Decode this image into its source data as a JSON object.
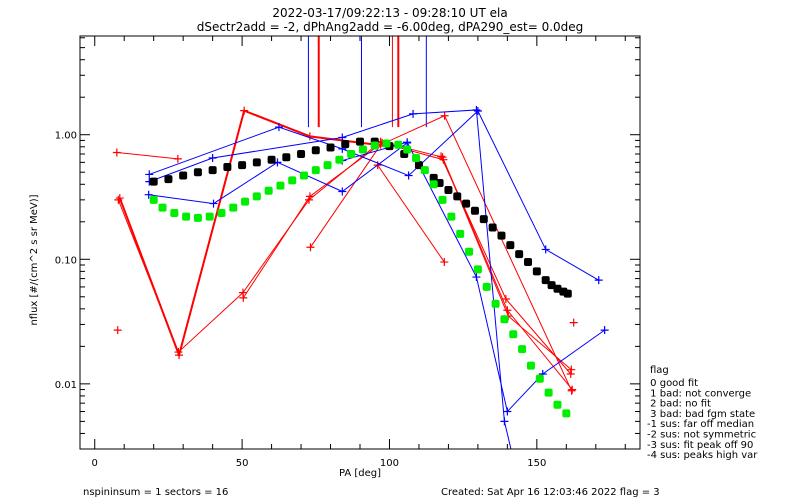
{
  "chart_data": {
    "type": "line",
    "title": "2022-03-17/09:22:13 - 09:28:10 UT ela",
    "subtitle": "dSectr2add = -2, dPhAng2add = -6.00deg, dPA290_est=    0.0deg",
    "xlabel": "PA [deg]",
    "ylabel": "nflux [#/(cm^2 s sr MeV)]",
    "xlim": [
      -5,
      185
    ],
    "ylim": [
      0.003,
      6.2
    ],
    "yscale": "log",
    "xticks": [
      0,
      50,
      100,
      150
    ],
    "xtick_labels": [
      "0",
      "50",
      "100",
      "150"
    ],
    "yticks": [
      0.01,
      0.1,
      1.0
    ],
    "ytick_labels": [
      "0.01",
      "0.10",
      "1.00"
    ],
    "grid": false,
    "colors": {
      "red": "#ff0000",
      "blue": "#0000ff",
      "black": "#000000",
      "green": "#00ee00"
    },
    "series": [
      {
        "name": "red-a",
        "color": "red",
        "width": 1,
        "x": [
          7.5,
          28.2
        ],
        "y": [
          0.72,
          0.64
        ]
      },
      {
        "name": "red-thick",
        "color": "red",
        "width": 2,
        "x": [
          8.5,
          28.6,
          50.7,
          73,
          95.6
        ],
        "y": [
          0.31,
          0.017,
          1.56,
          0.97,
          0.83
        ]
      },
      {
        "name": "red-b",
        "color": "red",
        "width": 1,
        "x": [
          8,
          28.4,
          50.3,
          72.7,
          97,
          118,
          140,
          162
        ],
        "y": [
          0.3,
          0.018,
          0.054,
          0.3,
          0.88,
          0.66,
          0.039,
          0.009
        ]
      },
      {
        "name": "red-c",
        "color": "red",
        "width": 1,
        "x": [
          50.4,
          73,
          97.5,
          118.3,
          140.3,
          161.7
        ],
        "y": [
          0.049,
          0.32,
          0.86,
          0.63,
          0.035,
          0.013
        ]
      },
      {
        "name": "red-d",
        "color": "red",
        "width": 1,
        "x": [
          73.2,
          97,
          118.7,
          161.8
        ],
        "y": [
          0.125,
          0.83,
          1.42,
          0.0088
        ]
      },
      {
        "name": "red-e",
        "color": "red",
        "width": 1,
        "x": [
          96,
          118.6
        ],
        "y": [
          0.57,
          0.095
        ]
      },
      {
        "name": "red-f",
        "color": "red",
        "width": 1,
        "x": [
          117.5,
          139.5,
          161.5
        ],
        "y": [
          0.67,
          0.048,
          0.012
        ]
      },
      {
        "name": "blue-a",
        "color": "blue",
        "width": 1,
        "x": [
          18.5,
          62.5,
          84,
          106.5,
          130,
          153,
          171
        ],
        "y": [
          0.48,
          1.15,
          0.77,
          0.47,
          1.55,
          0.12,
          0.068
        ]
      },
      {
        "name": "blue-b",
        "color": "blue",
        "width": 1,
        "x": [
          18.5,
          40,
          84,
          108,
          129.5,
          139,
          142
        ],
        "y": [
          0.42,
          0.65,
          0.95,
          1.47,
          1.58,
          0.005,
          0.0025
        ]
      },
      {
        "name": "blue-c",
        "color": "blue",
        "width": 1,
        "x": [
          18.3,
          40.3,
          62,
          84,
          106
        ],
        "y": [
          0.33,
          0.28,
          0.6,
          0.35,
          0.86
        ]
      },
      {
        "name": "blue-d",
        "color": "blue",
        "width": 1,
        "x": [
          84,
          106,
          129.5,
          140,
          152,
          173
        ],
        "y": [
          0.62,
          0.87,
          0.072,
          0.006,
          0.012,
          0.027
        ]
      },
      {
        "name": "red-isolated",
        "color": "red",
        "width": 1,
        "x": [
          7.8,
          162.5
        ],
        "y": [
          0.027,
          0.031
        ],
        "markers_only": true
      }
    ],
    "fit_black": {
      "x": [
        20,
        25,
        30,
        35,
        40,
        45,
        50,
        55,
        60,
        65,
        70,
        75,
        80,
        85,
        90,
        95,
        100,
        105,
        110,
        115,
        117,
        120,
        123,
        126,
        129,
        132,
        135,
        138,
        141,
        144,
        147,
        150,
        153,
        155,
        157,
        159,
        160.5
      ],
      "y": [
        0.42,
        0.44,
        0.47,
        0.5,
        0.52,
        0.55,
        0.57,
        0.6,
        0.63,
        0.66,
        0.7,
        0.75,
        0.79,
        0.84,
        0.88,
        0.88,
        0.81,
        0.7,
        0.57,
        0.45,
        0.41,
        0.36,
        0.32,
        0.28,
        0.245,
        0.21,
        0.18,
        0.155,
        0.13,
        0.11,
        0.095,
        0.08,
        0.068,
        0.062,
        0.058,
        0.055,
        0.053
      ]
    },
    "fit_green": {
      "x": [
        20,
        23,
        27,
        31,
        35,
        39,
        43,
        47,
        51,
        55,
        59,
        63,
        67,
        71,
        75,
        79,
        83,
        87,
        91,
        95,
        99,
        103,
        106,
        109,
        112,
        115,
        118,
        121,
        124,
        127,
        130,
        133,
        136,
        139,
        142,
        145,
        148,
        151,
        154,
        157,
        160
      ],
      "y": [
        0.3,
        0.26,
        0.235,
        0.22,
        0.215,
        0.22,
        0.235,
        0.26,
        0.29,
        0.32,
        0.355,
        0.39,
        0.43,
        0.47,
        0.52,
        0.57,
        0.63,
        0.7,
        0.76,
        0.82,
        0.85,
        0.83,
        0.76,
        0.65,
        0.52,
        0.4,
        0.3,
        0.22,
        0.16,
        0.115,
        0.083,
        0.06,
        0.044,
        0.033,
        0.025,
        0.019,
        0.014,
        0.011,
        0.0085,
        0.0068,
        0.0058
      ]
    },
    "vertical_lines": [
      {
        "x": 72.5,
        "color": "blue",
        "width": 1
      },
      {
        "x": 76,
        "color": "red",
        "width": 2
      },
      {
        "x": 90.5,
        "color": "blue",
        "width": 1
      },
      {
        "x": 101,
        "color": "red",
        "width": 1
      },
      {
        "x": 103,
        "color": "red",
        "width": 2
      },
      {
        "x": 112.5,
        "color": "blue",
        "width": 1
      }
    ],
    "vertical_line_bottom_value": 1.15,
    "legend": {
      "placement": "bottom-right outside",
      "title": "flag",
      "entries": [
        " 0 good fit",
        " 1 bad: not converge",
        " 2 bad: no fit",
        " 3 bad: bad fgm state",
        "-1 sus: far off median",
        "-2 sus: not symmetric",
        "-3 sus: fit peak off 90",
        "-4 sus: peaks high var"
      ]
    }
  },
  "footer": {
    "left": "nspininsum =  1  sectors = 16",
    "right": "Created: Sat Apr 16 12:03:46 2022   flag = 3"
  }
}
